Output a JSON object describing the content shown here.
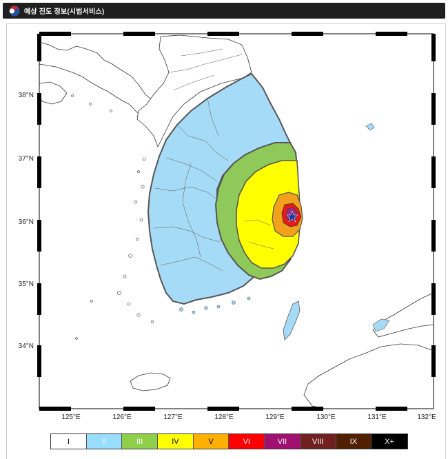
{
  "header": {
    "title": "예상 진도 정보(시범서비스)",
    "logo_icon": "taegeuk-logo-icon"
  },
  "map": {
    "lat_labels": [
      "38°N",
      "37°N",
      "36°N",
      "35°N",
      "34°N"
    ],
    "lon_labels": [
      "125°E",
      "126°E",
      "127°E",
      "128°E",
      "129°E",
      "130°E",
      "131°E",
      "132°E"
    ],
    "colors": {
      "land": "#ffffff",
      "coast": "#333333",
      "zone_II": "#a6dbf7",
      "zone_III": "#8fc95a",
      "zone_IV": "#ffff00",
      "zone_V": "#f2a11a",
      "zone_VI": "#e8191a",
      "zone_VII": "#9b2c8c",
      "epicenter": "#1b3a9c"
    },
    "epicenter_icon": "epicenter-star-icon"
  },
  "legend": {
    "items": [
      {
        "label": "I",
        "color": "#ffffff",
        "text_color": "#000000"
      },
      {
        "label": "II",
        "color": "#99ddff",
        "text_color": "#ffffff"
      },
      {
        "label": "III",
        "color": "#8fcf4a",
        "text_color": "#ffffff"
      },
      {
        "label": "IV",
        "color": "#ffff00",
        "text_color": "#000000"
      },
      {
        "label": "V",
        "color": "#ffb000",
        "text_color": "#000000"
      },
      {
        "label": "VI",
        "color": "#ff0000",
        "text_color": "#ffffff"
      },
      {
        "label": "VII",
        "color": "#a01070",
        "text_color": "#ffffff"
      },
      {
        "label": "VIII",
        "color": "#702020",
        "text_color": "#ffffff"
      },
      {
        "label": "IX",
        "color": "#502000",
        "text_color": "#ffffff"
      },
      {
        "label": "X+",
        "color": "#000000",
        "text_color": "#ffffff"
      }
    ]
  }
}
